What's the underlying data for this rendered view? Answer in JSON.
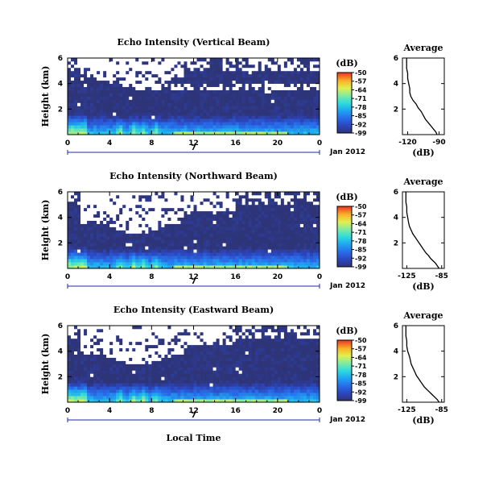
{
  "chart_data": [
    {
      "type": "heatmap",
      "title": "Echo Intensity (Vertical Beam)",
      "ylabel": "Height (km)",
      "y_ticks": [
        2,
        4,
        6
      ],
      "ylim": [
        0,
        6
      ],
      "x_ticks": [
        "0",
        "4",
        "8",
        "12",
        "16",
        "20",
        "0"
      ],
      "xlim": [
        0,
        24
      ],
      "day_label": "7",
      "date_label": "Jan 2012",
      "colorbar": {
        "label": "(dB)",
        "ticks": [
          -50,
          -57,
          -64,
          -71,
          -78,
          -85,
          -92,
          -99
        ],
        "range": [
          -99,
          -50
        ]
      },
      "profile": {
        "title": "Average",
        "xlabel": "(dB)",
        "x_ticks": [
          -120,
          -90
        ],
        "xlim": [
          -125,
          -85
        ],
        "y_ticks": [
          2,
          4,
          6
        ],
        "height_km": [
          0.0,
          0.2,
          0.4,
          0.6,
          0.8,
          1.0,
          1.2,
          1.5,
          1.8,
          2.1,
          2.4,
          2.7,
          3.0,
          3.3,
          3.6,
          4.0,
          4.4,
          4.8,
          5.2,
          5.6,
          6.0
        ],
        "avg_db": [
          -92,
          -93,
          -95,
          -97,
          -99,
          -101,
          -103,
          -105,
          -107,
          -110,
          -112,
          -115,
          -117,
          -118,
          -118,
          -119,
          -120,
          -120,
          -121,
          -121,
          -121
        ]
      }
    },
    {
      "type": "heatmap",
      "title": "Echo Intensity (Northward Beam)",
      "ylabel": "Height (km)",
      "y_ticks": [
        2,
        4,
        6
      ],
      "ylim": [
        0,
        6
      ],
      "x_ticks": [
        "0",
        "4",
        "8",
        "12",
        "16",
        "20",
        "0"
      ],
      "xlim": [
        0,
        24
      ],
      "day_label": "7",
      "date_label": "Jan 2012",
      "colorbar": {
        "label": "(dB)",
        "ticks": [
          -50,
          -57,
          -64,
          -71,
          -78,
          -85,
          -92,
          -99
        ],
        "range": [
          -99,
          -50
        ]
      },
      "profile": {
        "title": "Average",
        "xlabel": "(dB)",
        "x_ticks": [
          -125,
          -85
        ],
        "xlim": [
          -130,
          -82
        ],
        "y_ticks": [
          2,
          4,
          6
        ],
        "height_km": [
          0.0,
          0.2,
          0.4,
          0.6,
          0.8,
          1.0,
          1.2,
          1.5,
          1.8,
          2.1,
          2.4,
          2.7,
          3.0,
          3.3,
          3.6,
          4.0,
          4.4,
          4.8,
          5.2,
          5.6,
          6.0
        ],
        "avg_db": [
          -88,
          -90,
          -92,
          -95,
          -98,
          -100,
          -103,
          -106,
          -109,
          -112,
          -115,
          -118,
          -120,
          -122,
          -123,
          -124,
          -125,
          -125,
          -126,
          -126,
          -126
        ]
      }
    },
    {
      "type": "heatmap",
      "title": "Echo Intensity (Eastward Beam)",
      "ylabel": "Height (km)",
      "y_ticks": [
        2,
        4,
        6
      ],
      "ylim": [
        0,
        6
      ],
      "x_ticks": [
        "0",
        "4",
        "8",
        "12",
        "16",
        "20",
        "0"
      ],
      "xlim": [
        0,
        24
      ],
      "day_label": "7",
      "date_label": "Jan 2012",
      "xlabel": "Local Time",
      "colorbar": {
        "label": "(dB)",
        "ticks": [
          -50,
          -57,
          -64,
          -71,
          -78,
          -85,
          -92,
          -99
        ],
        "range": [
          -99,
          -50
        ]
      },
      "profile": {
        "title": "Average",
        "xlabel": "(dB)",
        "x_ticks": [
          -125,
          -85
        ],
        "xlim": [
          -130,
          -82
        ],
        "y_ticks": [
          2,
          4,
          6
        ],
        "height_km": [
          0.0,
          0.2,
          0.4,
          0.6,
          0.8,
          1.0,
          1.2,
          1.5,
          1.8,
          2.1,
          2.4,
          2.7,
          3.0,
          3.3,
          3.6,
          4.0,
          4.4,
          4.8,
          5.2,
          5.6,
          6.0
        ],
        "avg_db": [
          -88,
          -90,
          -93,
          -96,
          -99,
          -102,
          -105,
          -108,
          -111,
          -114,
          -116,
          -118,
          -120,
          -121,
          -122,
          -124,
          -125,
          -125,
          -126,
          -126,
          -126
        ]
      }
    }
  ]
}
